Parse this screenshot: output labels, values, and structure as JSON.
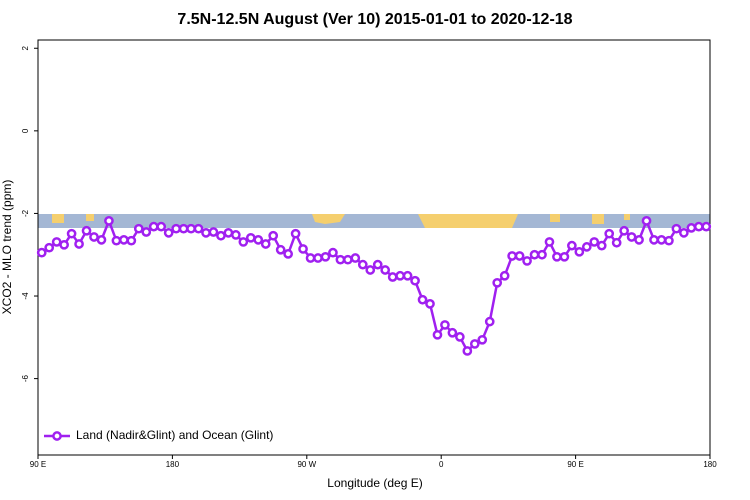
{
  "chart_data": {
    "type": "line",
    "title": "7.5N-12.5N August (Ver 10)   2015-01-01 to 2020-12-18",
    "x_label": "Longitude (deg E)",
    "y_label": "XCO2 - MLO trend (ppm)",
    "xlim": [
      90,
      540
    ],
    "xticks": [
      {
        "value": 90,
        "label": "90 E"
      },
      {
        "value": 180,
        "label": "180"
      },
      {
        "value": 270,
        "label": "90 W"
      },
      {
        "value": 360,
        "label": "0"
      },
      {
        "value": 450,
        "label": "90 E"
      },
      {
        "value": 540,
        "label": "180"
      }
    ],
    "ylim": [
      -7.85,
      2.2
    ],
    "yticks": [
      2,
      0,
      -2,
      -4,
      -6
    ],
    "legend": "bottom-left",
    "x": [
      92.5,
      97.5,
      102.5,
      107.5,
      112.5,
      117.5,
      122.5,
      127.5,
      132.5,
      137.5,
      142.5,
      147.5,
      152.5,
      157.5,
      162.5,
      167.5,
      172.5,
      177.5,
      182.5,
      187.5,
      192.5,
      197.5,
      202.5,
      207.5,
      212.5,
      217.5,
      222.5,
      227.5,
      232.5,
      237.5,
      242.5,
      247.5,
      252.5,
      257.5,
      262.5,
      267.5,
      272.5,
      277.5,
      282.5,
      287.5,
      292.5,
      297.5,
      302.5,
      307.5,
      312.5,
      317.5,
      322.5,
      327.5,
      332.5,
      337.5,
      342.5,
      347.5,
      352.5,
      357.5,
      362.5,
      367.5,
      372.5,
      377.5,
      382.5,
      387.5,
      392.5,
      397.5,
      402.5,
      407.5,
      412.5,
      417.5,
      422.5,
      427.5,
      432.5,
      437.5,
      442.5,
      447.5,
      452.5,
      457.5,
      462.5,
      467.5,
      472.5,
      477.5,
      482.5,
      487.5,
      492.5,
      497.5,
      502.5,
      507.5,
      512.5,
      517.5,
      522.5,
      527.5,
      532.5,
      537.5
    ],
    "series": [
      {
        "name": "Land (Nadir&Glint) and Ocean (Glint)",
        "color": "#a020f0",
        "values": [
          -2.95,
          -2.83,
          -2.69,
          -2.76,
          -2.49,
          -2.74,
          -2.42,
          -2.57,
          -2.64,
          -2.18,
          -2.66,
          -2.64,
          -2.66,
          -2.37,
          -2.45,
          -2.32,
          -2.32,
          -2.47,
          -2.37,
          -2.37,
          -2.37,
          -2.37,
          -2.47,
          -2.45,
          -2.54,
          -2.47,
          -2.52,
          -2.69,
          -2.59,
          -2.64,
          -2.74,
          -2.54,
          -2.88,
          -2.98,
          -2.49,
          -2.86,
          -3.08,
          -3.08,
          -3.05,
          -2.95,
          -3.12,
          -3.12,
          -3.08,
          -3.24,
          -3.37,
          -3.24,
          -3.37,
          -3.54,
          -3.51,
          -3.51,
          -3.63,
          -4.09,
          -4.19,
          -4.94,
          -4.7,
          -4.89,
          -4.99,
          -5.33,
          -5.16,
          -5.06,
          -4.62,
          -3.68,
          -3.51,
          -3.03,
          -3.03,
          -3.15,
          -3.0,
          -3.0,
          -2.69,
          -3.05,
          -3.05,
          -2.78,
          -2.93,
          -2.81,
          -2.69,
          -2.78,
          -2.49,
          -2.71,
          -2.42,
          -2.57,
          -2.64,
          -2.18,
          -2.64,
          -2.64,
          -2.66,
          -2.37,
          -2.47,
          -2.35,
          -2.32,
          -2.32
        ]
      }
    ]
  }
}
